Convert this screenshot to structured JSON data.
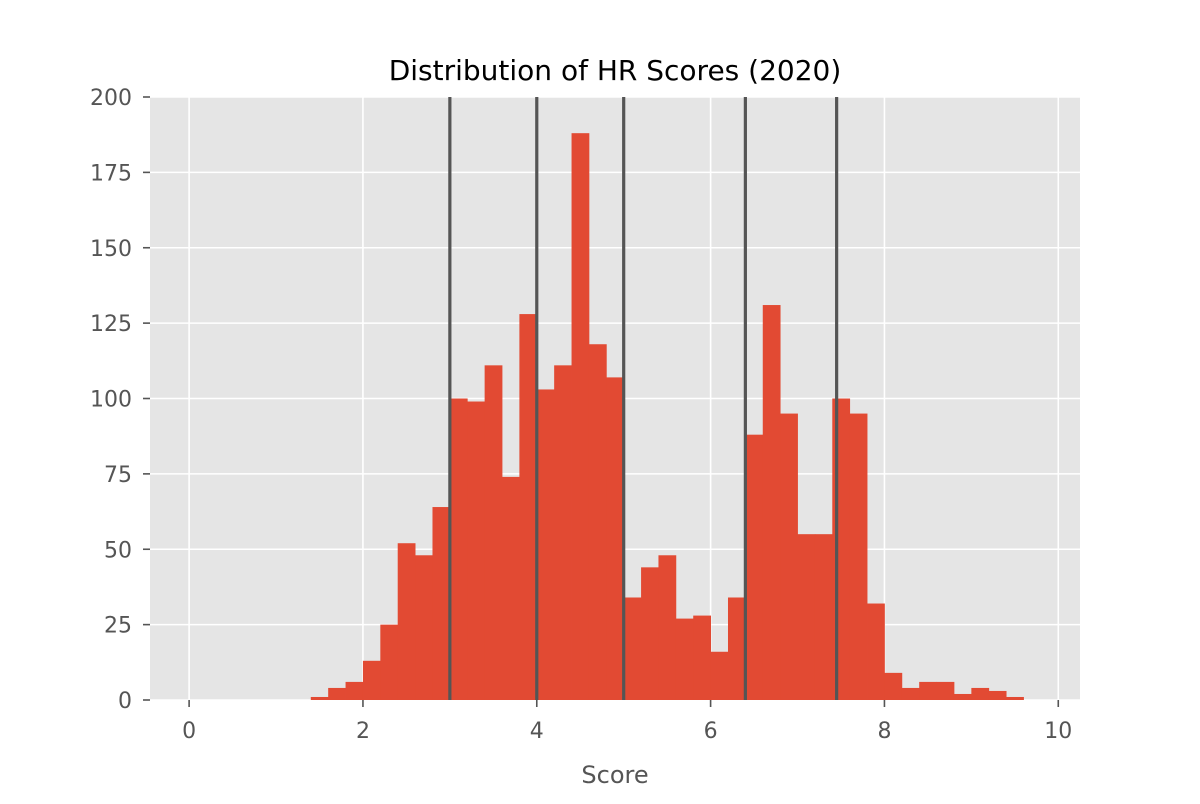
{
  "chart_data": {
    "type": "bar",
    "title": "Distribution of HR Scores (2020)",
    "xlabel": "Score",
    "ylabel": "",
    "xlim": [
      -0.45,
      10.25
    ],
    "ylim": [
      0,
      200
    ],
    "grid": true,
    "x_ticks": [
      0,
      2,
      4,
      6,
      8,
      10
    ],
    "y_ticks": [
      0,
      25,
      50,
      75,
      100,
      125,
      150,
      175,
      200
    ],
    "bin_edges": [
      1.4,
      1.6,
      1.8,
      2.0,
      2.2,
      2.4,
      2.6,
      2.8,
      3.0,
      3.2,
      3.4,
      3.6,
      3.8,
      4.0,
      4.2,
      4.4,
      4.6,
      4.8,
      5.0,
      5.2,
      5.4,
      5.6,
      5.8,
      6.0,
      6.2,
      6.4,
      6.6,
      6.8,
      7.0,
      7.2,
      7.4,
      7.6,
      7.8,
      8.0,
      8.2,
      8.4,
      8.6,
      8.8,
      9.0,
      9.2,
      9.4,
      9.6
    ],
    "counts": [
      1,
      4,
      6,
      13,
      25,
      52,
      48,
      64,
      100,
      99,
      111,
      74,
      128,
      103,
      111,
      188,
      118,
      107,
      34,
      44,
      48,
      27,
      28,
      16,
      34,
      88,
      131,
      95,
      55,
      55,
      100,
      95,
      32,
      9,
      4,
      6,
      6,
      2,
      4,
      3,
      1
    ],
    "vlines": [
      3.0,
      4.0,
      5.0,
      6.4,
      7.45
    ],
    "colors": {
      "bar": "#E24A33",
      "plot_background": "#E5E5E5",
      "grid": "#FFFFFF",
      "vline": "#555555",
      "tick_text": "#555555",
      "title": "#000000"
    }
  }
}
